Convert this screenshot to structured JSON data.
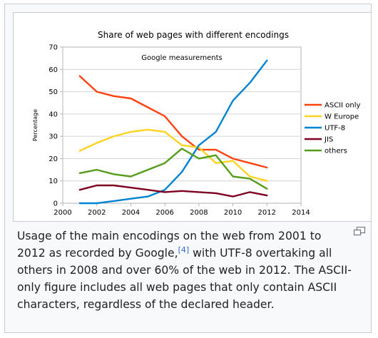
{
  "caption": {
    "text_before": "Usage of the main encodings on the web from 2001 to 2012 as recorded by Google,",
    "ref": "[4]",
    "text_after": " with UTF-8 overtaking all others in 2008 and over 60% of the web in 2012. The ASCII-only figure includes all web pages that only contain ASCII characters, regardless of the declared header."
  },
  "icons": {
    "magnify": "magnify-icon"
  },
  "colors": {
    "background": "#ffffff",
    "frame": "#c8ccd1",
    "caption_text": "#202122",
    "link": "#3366cc"
  },
  "chart_data": {
    "type": "line",
    "title": "Share of web pages with different encodings",
    "subtitle": "Google measurements",
    "xlabel": "",
    "ylabel": "Percentage",
    "xlim": [
      2000,
      2014
    ],
    "ylim": [
      0,
      70
    ],
    "x_ticks": [
      2000,
      2002,
      2004,
      2006,
      2008,
      2010,
      2012,
      2014
    ],
    "y_ticks": [
      0,
      10,
      20,
      30,
      40,
      50,
      60,
      70
    ],
    "grid": "horizontal",
    "legend": "right",
    "x": [
      2001,
      2002,
      2003,
      2004,
      2005,
      2006,
      2007,
      2008,
      2009,
      2010,
      2011,
      2012
    ],
    "series": [
      {
        "name": "ASCII only",
        "color": "#ff420e",
        "values": [
          57,
          50,
          48,
          47,
          43,
          39,
          30,
          24,
          24,
          20,
          18,
          16
        ]
      },
      {
        "name": "W Europe",
        "color": "#ffd320",
        "values": [
          23.5,
          27,
          30,
          32,
          33,
          32,
          26,
          25,
          18,
          19,
          12,
          10
        ]
      },
      {
        "name": "UTF-8",
        "color": "#0084d1",
        "values": [
          0,
          0,
          1,
          2,
          3,
          6,
          14,
          26,
          32,
          46,
          54,
          64
        ]
      },
      {
        "name": "JIS",
        "color": "#7e0021",
        "values": [
          6,
          8,
          8,
          7,
          6,
          5,
          5.5,
          5,
          4.5,
          3,
          5,
          3.5
        ]
      },
      {
        "name": "others",
        "color": "#579d1c",
        "values": [
          13.5,
          15,
          13,
          12,
          15,
          18,
          24.5,
          20,
          21.5,
          12,
          11,
          6.5
        ]
      }
    ]
  }
}
